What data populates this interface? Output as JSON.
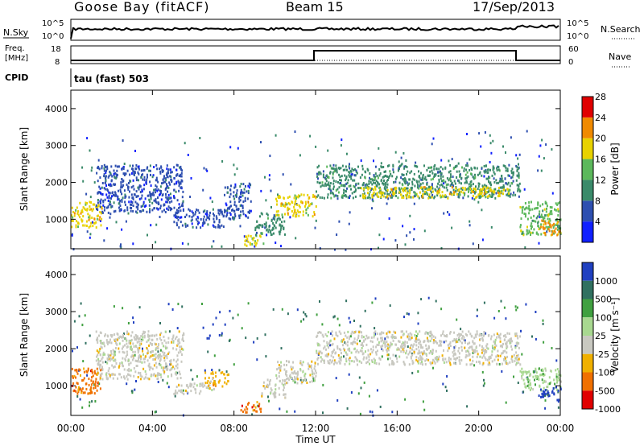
{
  "header": {
    "station": "Goose Bay (fitACF)",
    "beam": "Beam 15",
    "date": "17/Sep/2013"
  },
  "top_panels": {
    "nsky_label": "N.Sky",
    "nsky_ticks": [
      "10^5",
      "10^0"
    ],
    "nsearch_label": "N.Search",
    "nsearch_ticks": [
      "10^5",
      "10^0"
    ],
    "freq_label": "Freq.",
    "freq_unit": "[MHz]",
    "freq_ticks": [
      "18",
      "8"
    ],
    "nave_label": "Nave",
    "nave_ticks": [
      "60",
      "0"
    ],
    "cpid_label": "CPID",
    "cpid_text": "tau (fast) 503"
  },
  "chart_data": [
    {
      "type": "heatmap",
      "name": "power",
      "ylabel": "Slant Range [km]",
      "ylim": [
        200,
        4500
      ],
      "y_ticks": [
        1000,
        2000,
        3000,
        4000
      ],
      "xlim": [
        0,
        24
      ],
      "colorbar_label": "Power [dB]",
      "colorbar_ticks": [
        "4",
        "8",
        "12",
        "16",
        "20",
        "24",
        "28"
      ],
      "colorbar_colors": [
        "#1020ff",
        "#2e4fb0",
        "#3a8a6a",
        "#5cb85c",
        "#e8d200",
        "#f08a00",
        "#e00000"
      ],
      "regions": [
        {
          "t": [
            0.0,
            1.5
          ],
          "r": [
            800,
            1500
          ],
          "level": 4
        },
        {
          "t": [
            1.2,
            5.5
          ],
          "r": [
            1200,
            2500
          ],
          "level": 1
        },
        {
          "t": [
            5.0,
            7.5
          ],
          "r": [
            800,
            1300
          ],
          "level": 1
        },
        {
          "t": [
            7.5,
            8.8
          ],
          "r": [
            1000,
            2000
          ],
          "level": 1
        },
        {
          "t": [
            8.5,
            9.5
          ],
          "r": [
            300,
            600
          ],
          "level": 4
        },
        {
          "t": [
            9.0,
            10.5
          ],
          "r": [
            600,
            1200
          ],
          "level": 2
        },
        {
          "t": [
            10.0,
            12.0
          ],
          "r": [
            1100,
            1700
          ],
          "level": 4
        },
        {
          "t": [
            12.0,
            22.0
          ],
          "r": [
            1600,
            2500
          ],
          "level": 2
        },
        {
          "t": [
            14.0,
            21.5
          ],
          "r": [
            1600,
            1900
          ],
          "level": 4
        },
        {
          "t": [
            22.0,
            24.0
          ],
          "r": [
            600,
            1500
          ],
          "level": 3
        },
        {
          "t": [
            23.0,
            24.0
          ],
          "r": [
            600,
            1000
          ],
          "level": 5
        }
      ]
    },
    {
      "type": "heatmap",
      "name": "velocity",
      "ylabel": "Slant Range [km]",
      "xlabel": "Time UT",
      "ylim": [
        200,
        4500
      ],
      "y_ticks": [
        1000,
        2000,
        3000,
        4000
      ],
      "xlim": [
        0,
        24
      ],
      "x_ticks": [
        "00:00",
        "04:00",
        "08:00",
        "12:00",
        "16:00",
        "20:00",
        "00:00"
      ],
      "colorbar_label": "Velocity [m s⁻¹]",
      "colorbar_ticks": [
        "1000",
        "500",
        "100",
        "25",
        "-25",
        "-100",
        "-500",
        "-1000"
      ],
      "colorbar_colors": [
        "#2040c0",
        "#307060",
        "#40a040",
        "#a8d890",
        "#c8c8c0",
        "#f0b000",
        "#f07000",
        "#e00000"
      ],
      "regions": [
        {
          "t": [
            0.0,
            1.5
          ],
          "r": [
            800,
            1500
          ],
          "color": 6
        },
        {
          "t": [
            1.2,
            5.5
          ],
          "r": [
            1200,
            2500
          ],
          "color": 4
        },
        {
          "t": [
            5.0,
            7.0
          ],
          "r": [
            800,
            1100
          ],
          "color": 4
        },
        {
          "t": [
            6.5,
            7.7
          ],
          "r": [
            1000,
            1400
          ],
          "color": 5
        },
        {
          "t": [
            8.3,
            9.3
          ],
          "r": [
            300,
            600
          ],
          "color": 6
        },
        {
          "t": [
            9.3,
            10.5
          ],
          "r": [
            700,
            1200
          ],
          "color": 4
        },
        {
          "t": [
            10.0,
            12.0
          ],
          "r": [
            1100,
            1700
          ],
          "color": 4
        },
        {
          "t": [
            12.0,
            22.0
          ],
          "r": [
            1600,
            2500
          ],
          "color": 4
        },
        {
          "t": [
            22.0,
            24.0
          ],
          "r": [
            900,
            1500
          ],
          "color": 3
        },
        {
          "t": [
            23.0,
            24.0
          ],
          "r": [
            600,
            1000
          ],
          "color": 0
        }
      ]
    }
  ]
}
